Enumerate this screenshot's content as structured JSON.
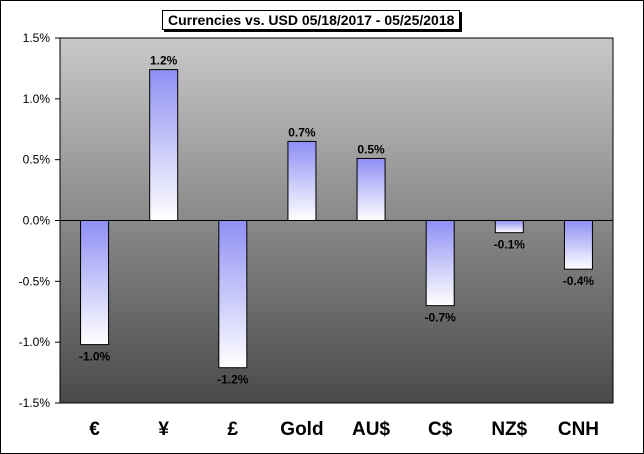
{
  "chart_data": {
    "type": "bar",
    "title": "Currencies vs. USD 05/18/2017 - 05/25/2018",
    "xlabel": "",
    "ylabel": "",
    "categories": [
      "€",
      "¥",
      "£",
      "Gold",
      "AU$",
      "C$",
      "NZ$",
      "CNH"
    ],
    "values": [
      -1.02,
      1.24,
      -1.21,
      0.65,
      0.51,
      -0.7,
      -0.1,
      -0.4
    ],
    "data_labels": [
      "-1.0%",
      "1.2%",
      "-1.2%",
      "0.7%",
      "0.5%",
      "-0.7%",
      "-0.1%",
      "-0.4%"
    ],
    "y_ticks": [
      1.5,
      1.0,
      0.5,
      0.0,
      -0.5,
      -1.0,
      -1.5
    ],
    "y_tick_labels": [
      "1.5%",
      "1.0%",
      "0.5%",
      "0.0%",
      "-0.5%",
      "-1.0%",
      "-1.5%"
    ],
    "ylim": [
      -1.5,
      1.5
    ],
    "grid": false,
    "legend": "none",
    "colors": {
      "plot_top": "#c8c8c8",
      "plot_bottom": "#4a4a4a",
      "bar_gradient_top": "#8f8ff5",
      "bar_gradient_bottom": "#ffffff",
      "bar_border": "#000000"
    }
  }
}
